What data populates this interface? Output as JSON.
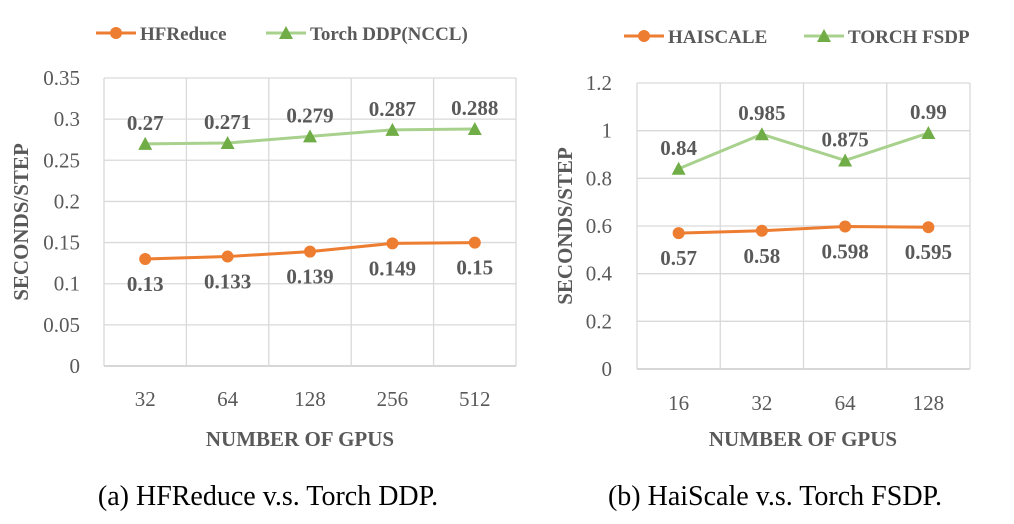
{
  "colors": {
    "orange": "#ED7D31",
    "green": "#A9D18E",
    "green_marker": "#70AD47",
    "grid": "#d9d9d9",
    "text": "#595959"
  },
  "chart_data": [
    {
      "type": "line",
      "caption": "(a) HFReduce v.s. Torch DDP.",
      "categories": [
        "32",
        "64",
        "128",
        "256",
        "512"
      ],
      "xlabel": "NUMBER OF GPUS",
      "ylabel": "SECONDS/STEP",
      "ylim": [
        0,
        0.35
      ],
      "yticks": [
        "0",
        "0.05",
        "0.1",
        "0.15",
        "0.2",
        "0.25",
        "0.3",
        "0.35"
      ],
      "grid": true,
      "legend_position": "top",
      "series": [
        {
          "name": "HFReduce",
          "values": [
            0.13,
            0.133,
            0.139,
            0.149,
            0.15
          ],
          "labels": [
            "0.13",
            "0.133",
            "0.139",
            "0.149",
            "0.15"
          ],
          "color": "#ED7D31",
          "marker": "circle",
          "label_position": "below"
        },
        {
          "name": "Torch DDP(NCCL)",
          "values": [
            0.27,
            0.271,
            0.279,
            0.287,
            0.288
          ],
          "labels": [
            "0.27",
            "0.271",
            "0.279",
            "0.287",
            "0.288"
          ],
          "color": "#A9D18E",
          "marker": "triangle",
          "label_position": "above"
        }
      ]
    },
    {
      "type": "line",
      "caption": "(b) HaiScale v.s. Torch FSDP.",
      "categories": [
        "16",
        "32",
        "64",
        "128"
      ],
      "xlabel": "NUMBER OF GPUS",
      "ylabel": "SECONDS/STEP",
      "ylim": [
        0,
        1.2
      ],
      "yticks": [
        "0",
        "0.2",
        "0.4",
        "0.6",
        "0.8",
        "1",
        "1.2"
      ],
      "grid": true,
      "legend_position": "top",
      "series": [
        {
          "name": "HAISCALE",
          "values": [
            0.57,
            0.58,
            0.598,
            0.595
          ],
          "labels": [
            "0.57",
            "0.58",
            "0.598",
            "0.595"
          ],
          "color": "#ED7D31",
          "marker": "circle",
          "label_position": "below"
        },
        {
          "name": "TORCH FSDP",
          "values": [
            0.84,
            0.985,
            0.875,
            0.99
          ],
          "labels": [
            "0.84",
            "0.985",
            "0.875",
            "0.99"
          ],
          "color": "#A9D18E",
          "marker": "triangle",
          "label_position": "above"
        }
      ]
    }
  ]
}
